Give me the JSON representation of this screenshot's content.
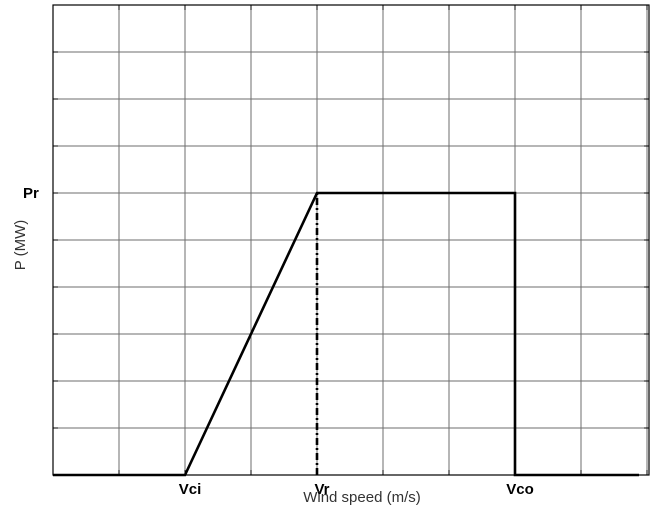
{
  "chart_data": {
    "type": "line",
    "title": "",
    "xlabel": "Wind speed (m/s)",
    "ylabel": "P (MW)",
    "grid": true,
    "xlim": [
      0,
      9
    ],
    "ylim": [
      0,
      6
    ],
    "x_key_points": [
      {
        "label": "Vci",
        "value": 2
      },
      {
        "label": "Vr",
        "value": 4
      },
      {
        "label": "Vco",
        "value": 7
      }
    ],
    "y_key_points": [
      {
        "label": "Pr",
        "value": 6
      }
    ],
    "series": [
      {
        "x": [
          0,
          2,
          4,
          7,
          7,
          9
        ],
        "y": [
          0,
          0,
          6,
          6,
          0,
          0
        ]
      }
    ],
    "annotations": [
      {
        "type": "vertical-dash-dot",
        "x": 4,
        "y_from": 0,
        "y_to": 6
      }
    ]
  }
}
